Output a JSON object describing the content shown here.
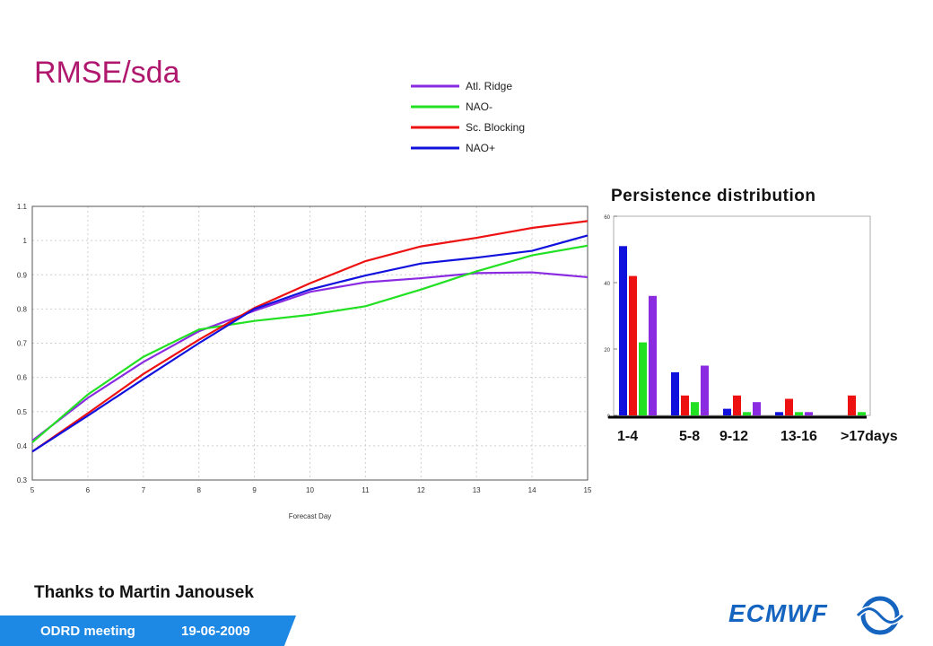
{
  "slide": {
    "title": "RMSE/sda",
    "thanks": "Thanks to Martin Janousek",
    "footer_meeting": "ODRD meeting",
    "footer_date": "19-06-2009",
    "brand": "ECMWF"
  },
  "colors": {
    "title": "#b0186e",
    "footer": "#1e88e5",
    "brand": "#1565c0",
    "atl_ridge": "#8a2be2",
    "nao_minus": "#22e022",
    "sc_blocking": "#ee1111",
    "nao_plus": "#1111dd"
  },
  "chart_data": [
    {
      "type": "line",
      "xlabel": "Forecast Day",
      "ylabel": "",
      "xlim": [
        5,
        15
      ],
      "ylim": [
        0.3,
        1.1
      ],
      "x_ticks": [
        "5",
        "6",
        "7",
        "8",
        "9",
        "10",
        "11",
        "12",
        "13",
        "14",
        "15"
      ],
      "y_ticks": [
        "0.3",
        "0.4",
        "0.5",
        "0.6",
        "0.7",
        "0.8",
        "0.9",
        "1",
        "1.1"
      ],
      "x": [
        5,
        6,
        7,
        8,
        9,
        10,
        11,
        12,
        13,
        14,
        15
      ],
      "legend": "above",
      "series": [
        {
          "name": "Atl. Ridge",
          "color": "#8a2be2",
          "values": [
            0.415,
            0.54,
            0.645,
            0.735,
            0.795,
            0.85,
            0.878,
            0.89,
            0.905,
            0.907,
            0.893
          ]
        },
        {
          "name": "NAO-",
          "color": "#22e022",
          "values": [
            0.41,
            0.55,
            0.66,
            0.74,
            0.765,
            0.783,
            0.808,
            0.857,
            0.91,
            0.957,
            0.985
          ]
        },
        {
          "name": "Sc. Blocking",
          "color": "#ee1111",
          "values": [
            0.383,
            0.495,
            0.61,
            0.71,
            0.803,
            0.875,
            0.94,
            0.983,
            1.008,
            1.037,
            1.057
          ]
        },
        {
          "name": "NAO+",
          "color": "#1111dd",
          "values": [
            0.383,
            0.488,
            0.595,
            0.7,
            0.8,
            0.857,
            0.898,
            0.933,
            0.95,
            0.97,
            1.015
          ]
        }
      ]
    },
    {
      "type": "bar",
      "title": "Persistence distribution",
      "categories": [
        "1-4",
        "5-8",
        "9-12",
        "13-16",
        ">17days"
      ],
      "ylim": [
        0,
        60
      ],
      "y_ticks": [
        "0",
        "20",
        "40",
        "60"
      ],
      "series": [
        {
          "name": "NAO+",
          "color": "#1111dd",
          "values": [
            51,
            13,
            2,
            1,
            0
          ]
        },
        {
          "name": "Sc. Blocking",
          "color": "#ee1111",
          "values": [
            42,
            6,
            6,
            5,
            6
          ]
        },
        {
          "name": "NAO-",
          "color": "#22e022",
          "values": [
            22,
            4,
            1,
            1,
            1
          ]
        },
        {
          "name": "Atl. Ridge",
          "color": "#8a2be2",
          "values": [
            36,
            15,
            4,
            1,
            0
          ]
        }
      ]
    }
  ]
}
